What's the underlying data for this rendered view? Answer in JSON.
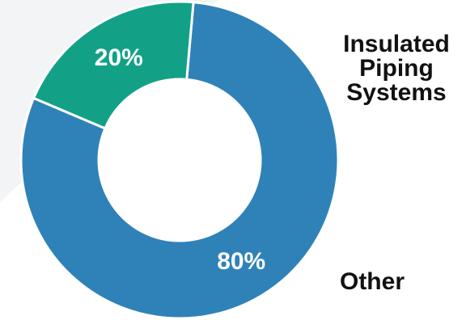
{
  "chart_data": {
    "type": "pie",
    "variant": "donut",
    "title": "",
    "legend_placement": "right",
    "slices": [
      {
        "label": "Insulated Piping Systems",
        "value": 80,
        "value_label": "80%",
        "color": "#2f82b8"
      },
      {
        "label": "Other",
        "value": 20,
        "value_label": "20%",
        "color": "#12a187"
      }
    ]
  },
  "colors": {
    "background": "#ffffff",
    "background_shape": "#f3f4f6",
    "slice_border": "#ffffff",
    "label_text": "#111111",
    "value_text": "#ffffff"
  }
}
